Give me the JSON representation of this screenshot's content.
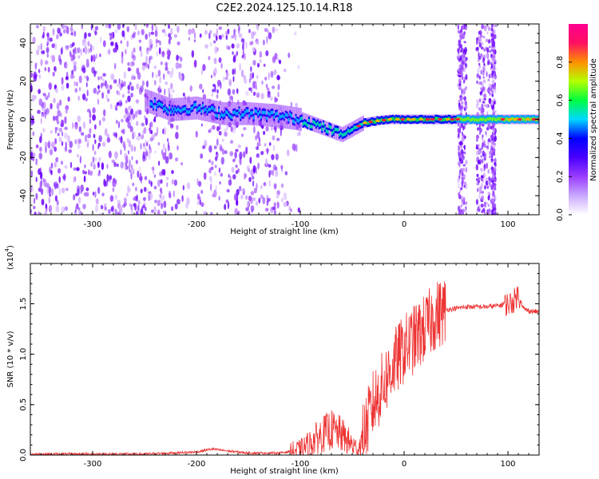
{
  "figure": {
    "title": "C2E2.2024.125.10.14.R18"
  },
  "chart_data": [
    {
      "type": "heatmap",
      "xlabel": "Height of straight line (km)",
      "ylabel": "Frequency (Hz)",
      "xlim": [
        -360,
        130
      ],
      "ylim": [
        -50,
        50
      ],
      "x_ticks": [
        "-300",
        "-200",
        "-100",
        "0",
        "100"
      ],
      "x_tick_values": [
        -300,
        -200,
        -100,
        0,
        100
      ],
      "y_ticks": [
        "-40",
        "-20",
        "0",
        "20",
        "40"
      ],
      "y_tick_values": [
        -40,
        -20,
        0,
        20,
        40
      ],
      "colorbar": {
        "label": "Normalized spectral amplitude",
        "range": [
          0,
          1
        ],
        "ticks": [
          "0.0",
          "0.2",
          "0.4",
          "0.6",
          "0.8"
        ],
        "tick_values": [
          0.0,
          0.2,
          0.4,
          0.6,
          0.8
        ],
        "colors": [
          "#ffffff",
          "#c9a8ff",
          "#9a3cff",
          "#4a00ff",
          "#0000ff",
          "#00d8ff",
          "#00ff40",
          "#b4ff00",
          "#ff9000",
          "#ff1060",
          "#ff0090"
        ]
      },
      "dominant_frequency_trace": {
        "x": [
          -250,
          -225,
          -200,
          -175,
          -150,
          -125,
          -100,
          -85,
          -70,
          -60,
          -50,
          -40,
          -30,
          -15,
          0,
          25,
          50,
          60,
          85,
          100,
          130
        ],
        "y": [
          10,
          5,
          6,
          3,
          3,
          2,
          0,
          -3,
          -6,
          -8,
          -5,
          -2,
          -1,
          0,
          0,
          0,
          0,
          0,
          0,
          0,
          0
        ]
      },
      "grid": false
    },
    {
      "type": "line",
      "xlabel": "Height of straight line (km)",
      "ylabel": "SNR (10 * v/v)",
      "y_scale_label": "(x10",
      "y_scale_exp": "4",
      "y_scale_close": ")",
      "xlim": [
        -360,
        130
      ],
      "ylim": [
        0,
        1.9
      ],
      "x_ticks": [
        "-300",
        "-200",
        "-100",
        "0",
        "100"
      ],
      "x_tick_values": [
        -300,
        -200,
        -100,
        0,
        100
      ],
      "y_ticks": [
        "0.0",
        "0.5",
        "1.0",
        "1.5"
      ],
      "y_tick_values": [
        0.0,
        0.5,
        1.0,
        1.5
      ],
      "series": [
        {
          "color": "#ee3333",
          "x": [
            -360,
            -300,
            -250,
            -200,
            -185,
            -170,
            -150,
            -120,
            -100,
            -90,
            -80,
            -70,
            -60,
            -50,
            -45,
            -40,
            -30,
            -20,
            -10,
            0,
            10,
            20,
            30,
            40,
            60,
            80,
            90,
            95,
            100,
            105,
            110,
            115,
            120,
            130
          ],
          "y": [
            0.01,
            0.01,
            0.01,
            0.03,
            0.06,
            0.04,
            0.02,
            0.02,
            0.05,
            0.12,
            0.2,
            0.25,
            0.2,
            0.1,
            0.05,
            0.15,
            0.5,
            0.7,
            0.9,
            1.05,
            1.15,
            1.25,
            1.38,
            1.44,
            1.47,
            1.47,
            1.48,
            1.49,
            1.5,
            1.52,
            1.6,
            1.45,
            1.43,
            1.42
          ]
        }
      ],
      "grid": false
    }
  ]
}
